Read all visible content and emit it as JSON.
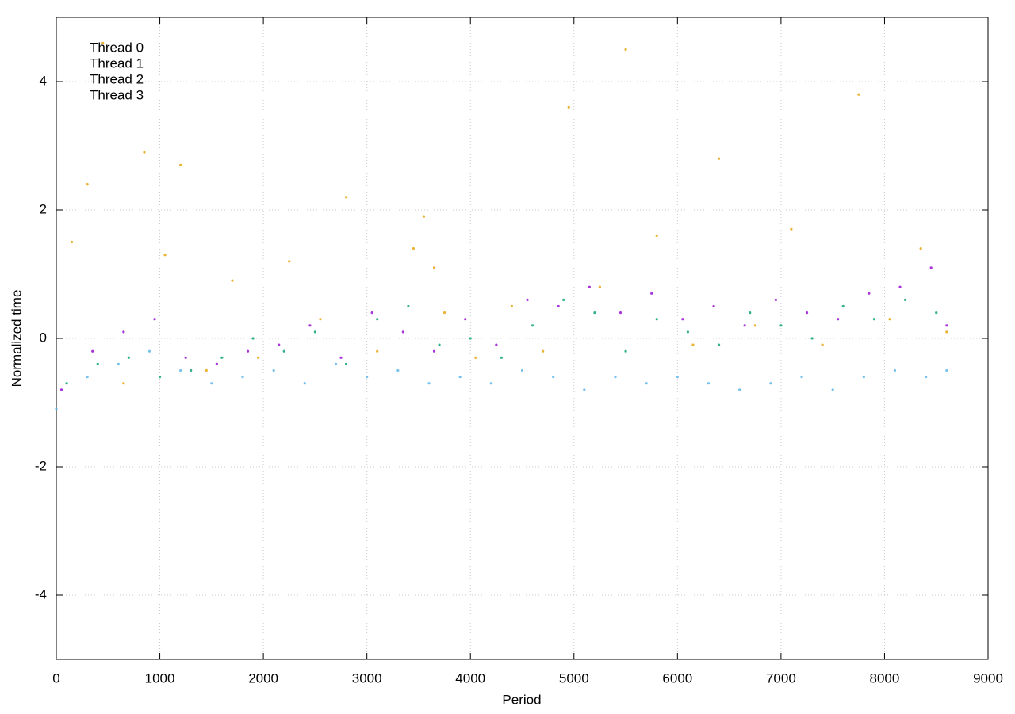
{
  "chart_data": {
    "type": "scatter",
    "x_label": "Period",
    "y_label": "Normalized time",
    "xlim": [
      0,
      9000
    ],
    "ylim": [
      -5,
      5
    ],
    "xticks": [
      0,
      1000,
      2000,
      3000,
      4000,
      5000,
      6000,
      7000,
      8000,
      9000
    ],
    "yticks": [
      -4,
      -2,
      0,
      2,
      4
    ],
    "grid": true,
    "legend": "top-left",
    "series": [
      {
        "name": "Thread 0",
        "color": "#9400d3",
        "x": [
          50,
          350,
          650,
          950,
          1250,
          1550,
          1850,
          2150,
          2450,
          2750,
          3050,
          3350,
          3650,
          3950,
          4250,
          4550,
          4850,
          5150,
          5450,
          5750,
          6050,
          6350,
          6650,
          6950,
          7250,
          7550,
          7850,
          8150,
          8450,
          8600
        ],
        "values": [
          -0.8,
          -0.2,
          0.1,
          0.3,
          -0.3,
          -0.4,
          -0.2,
          -0.1,
          0.2,
          -0.3,
          0.4,
          0.1,
          -0.2,
          0.3,
          -0.1,
          0.6,
          0.5,
          0.8,
          0.4,
          0.7,
          0.3,
          0.5,
          0.2,
          0.6,
          0.4,
          0.3,
          0.7,
          0.8,
          1.1,
          0.2
        ]
      },
      {
        "name": "Thread 1",
        "color": "#009e73",
        "x": [
          100,
          400,
          700,
          1000,
          1300,
          1600,
          1900,
          2200,
          2500,
          2800,
          3100,
          3400,
          3700,
          4000,
          4300,
          4600,
          4900,
          5200,
          5500,
          5800,
          6100,
          6400,
          6700,
          7000,
          7300,
          7600,
          7900,
          8200,
          8500
        ],
        "values": [
          -0.7,
          -0.4,
          -0.3,
          -0.6,
          -0.5,
          -0.3,
          0.0,
          -0.2,
          0.1,
          -0.4,
          0.3,
          0.5,
          -0.1,
          0.0,
          -0.3,
          0.2,
          0.6,
          0.4,
          -0.2,
          0.3,
          0.1,
          -0.1,
          0.4,
          0.2,
          0.0,
          0.5,
          0.3,
          0.6,
          0.4
        ]
      },
      {
        "name": "Thread 2",
        "color": "#56b4e9",
        "x": [
          0,
          300,
          600,
          900,
          1200,
          1500,
          1800,
          2100,
          2400,
          2700,
          3000,
          3300,
          3600,
          3900,
          4200,
          4500,
          4800,
          5100,
          5400,
          5700,
          6000,
          6300,
          6600,
          6900,
          7200,
          7500,
          7800,
          8100,
          8400,
          8600
        ],
        "values": [
          -1.1,
          -0.6,
          -0.4,
          -0.2,
          -0.5,
          -0.7,
          -0.6,
          -0.5,
          -0.7,
          -0.4,
          -0.6,
          -0.5,
          -0.7,
          -0.6,
          -0.7,
          -0.5,
          -0.6,
          -0.8,
          -0.6,
          -0.7,
          -0.6,
          -0.7,
          -0.8,
          -0.7,
          -0.6,
          -0.8,
          -0.6,
          -0.5,
          -0.6,
          -0.5
        ]
      },
      {
        "name": "Thread 3",
        "color": "#e69f00",
        "x": [
          150,
          300,
          450,
          650,
          850,
          1050,
          1200,
          1450,
          1700,
          1950,
          2250,
          2550,
          2800,
          3100,
          3450,
          3550,
          3650,
          3750,
          4050,
          4400,
          4700,
          4950,
          5250,
          5500,
          5800,
          6150,
          6400,
          6750,
          7100,
          7400,
          7750,
          8050,
          8350,
          8600
        ],
        "values": [
          1.5,
          2.4,
          4.6,
          -0.7,
          2.9,
          1.3,
          2.7,
          -0.5,
          0.9,
          -0.3,
          1.2,
          0.3,
          2.2,
          -0.2,
          1.4,
          1.9,
          1.1,
          0.4,
          -0.3,
          0.5,
          -0.2,
          3.6,
          0.8,
          4.5,
          1.6,
          -0.1,
          2.8,
          0.2,
          1.7,
          -0.1,
          3.8,
          0.3,
          1.4,
          0.1
        ]
      }
    ]
  }
}
